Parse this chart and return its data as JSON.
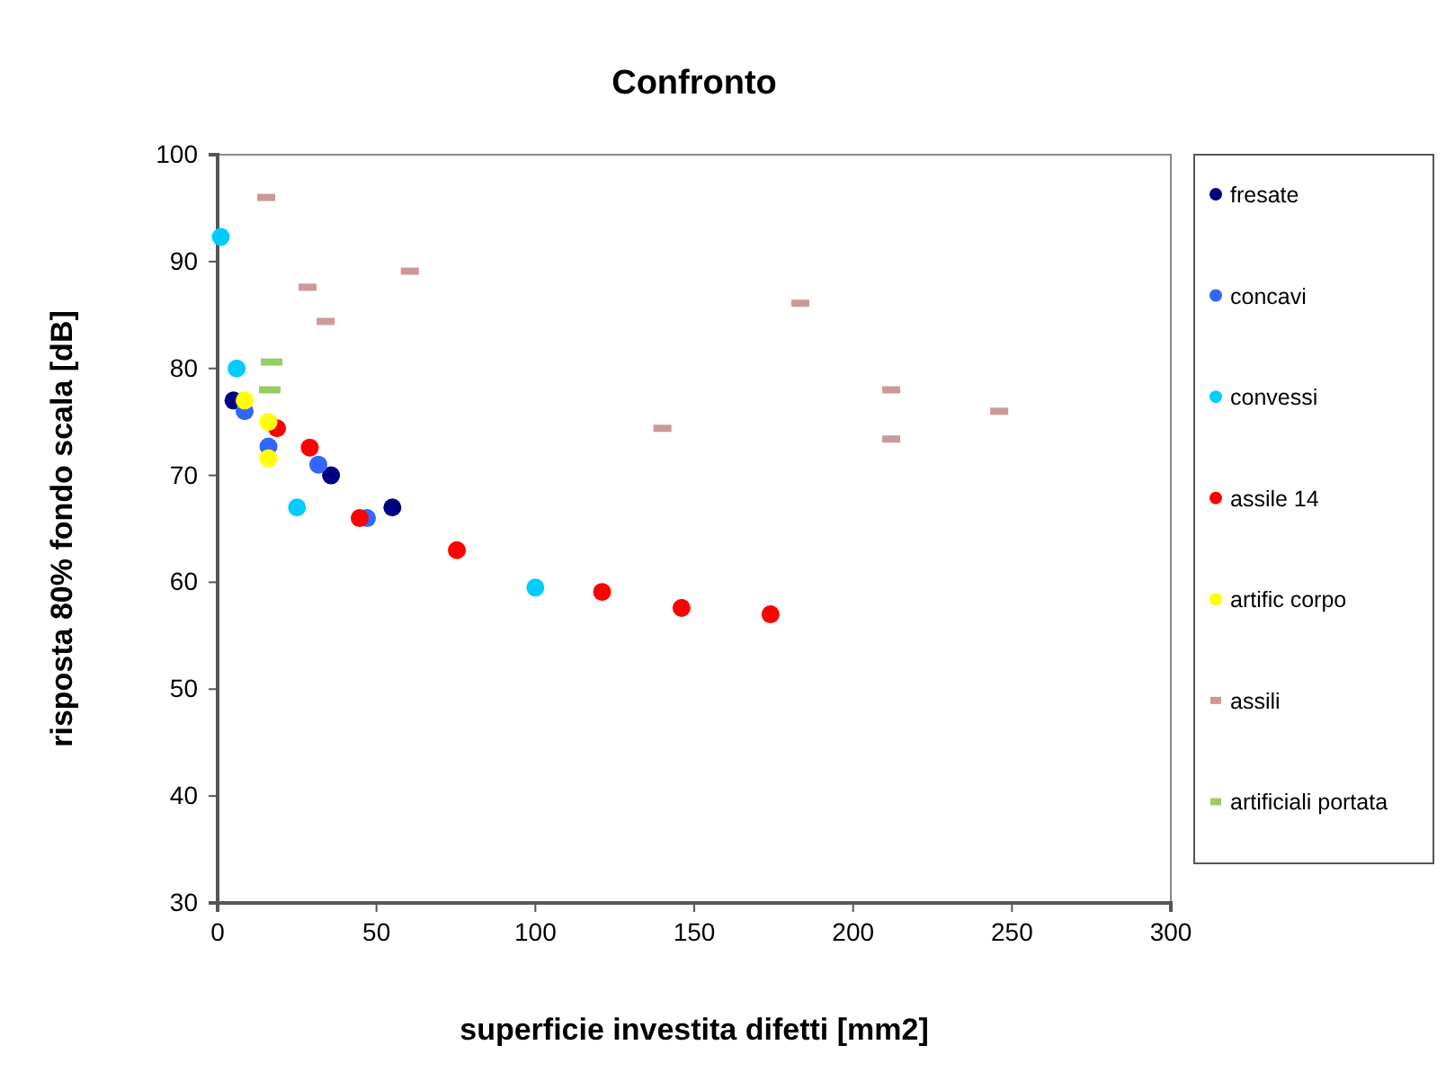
{
  "chart_data": {
    "type": "scatter",
    "title": "Confronto",
    "xlabel": "superficie investita difetti [mm2]",
    "ylabel": "risposta 80% fondo scala [dB]",
    "xlim": [
      0,
      300
    ],
    "xticks": [
      0,
      50,
      100,
      150,
      200,
      250,
      300
    ],
    "ylim": [
      30,
      100
    ],
    "yticks": [
      30,
      40,
      50,
      60,
      70,
      80,
      90,
      100
    ],
    "grid": false,
    "legend": "right",
    "marker": "circle",
    "series": [
      {
        "name": "fresate",
        "color": "#000080",
        "x": [
          5,
          35.7,
          55
        ],
        "values": [
          77.0,
          70.0,
          67.0
        ]
      },
      {
        "name": "concavi",
        "color": "#3366ff",
        "x": [
          8.5,
          16,
          31.7,
          47
        ],
        "values": [
          76.0,
          72.7,
          71.0,
          66.0
        ]
      },
      {
        "name": "convessi",
        "color": "#00ccff",
        "x": [
          1,
          6,
          25,
          100
        ],
        "values": [
          92.3,
          80.0,
          67.0,
          59.5
        ]
      },
      {
        "name": "assile 14",
        "color": "#ff0000",
        "x": [
          18.7,
          29,
          44.7,
          75.3,
          121,
          146,
          174
        ],
        "values": [
          74.4,
          72.6,
          66.0,
          63.0,
          59.1,
          57.6,
          57.0
        ]
      },
      {
        "name": "artific corpo",
        "color": "#ffff00",
        "x": [
          8.5,
          16,
          16
        ],
        "values": [
          77.0,
          75.0,
          71.6
        ]
      },
      {
        "name": "assili",
        "color": "#cc9999",
        "marker": "square",
        "x": [
          15.3,
          28.3,
          34,
          60.5,
          140,
          183.4,
          212,
          212,
          246
        ],
        "values": [
          96.0,
          87.6,
          84.4,
          89.1,
          74.4,
          86.1,
          78.0,
          73.4,
          76.0
        ]
      },
      {
        "name": "artificiali portata",
        "color": "#99cc66",
        "marker": "square",
        "x": [
          17,
          16.4
        ],
        "values": [
          80.6,
          78.0
        ]
      }
    ]
  }
}
